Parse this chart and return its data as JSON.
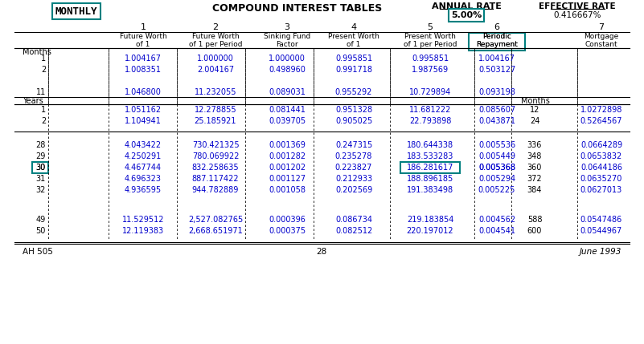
{
  "title_left": "MONTHLY",
  "title_center": "COMPOUND INTEREST TABLES",
  "title_rate_label": "ANNUAL RATE",
  "title_rate_value": "5.00%",
  "title_eff_label": "EFFECTIVE RATE",
  "title_eff_value": "0.416667%",
  "col_numbers": [
    "1",
    "2",
    "3",
    "4",
    "5",
    "6",
    "",
    "7"
  ],
  "col_headers": [
    [
      "Future Worth",
      "of 1"
    ],
    [
      "Future Worth",
      "of 1 per Period"
    ],
    [
      "Sinking Fund",
      "Factor"
    ],
    [
      "Present Worth",
      "of 1"
    ],
    [
      "Present Worth",
      "of 1 per Period"
    ],
    [
      "Periodic",
      "Repayment"
    ],
    [],
    [
      "Mortgage",
      "Constant"
    ]
  ],
  "row_label_left": "Months",
  "months_rows": [
    [
      "1",
      "1.004167",
      "1.000000",
      "1.000000",
      "0.995851",
      "0.995851",
      "1.004167",
      "",
      ""
    ],
    [
      "2",
      "1.008351",
      "2.004167",
      "0.498960",
      "0.991718",
      "1.987569",
      "0.503127",
      "",
      ""
    ],
    [
      "11",
      "1.046800",
      "11.232055",
      "0.089031",
      "0.955292",
      "10.729894",
      "0.093198",
      "",
      ""
    ]
  ],
  "years_label": "Years",
  "months_right_label": "Months",
  "years_rows": [
    [
      "1",
      "1.051162",
      "12.278855",
      "0.081441",
      "0.951328",
      "11.681222",
      "0.085607",
      "12",
      "1.0272898"
    ],
    [
      "2",
      "1.104941",
      "25.185921",
      "0.039705",
      "0.905025",
      "22.793898",
      "0.043871",
      "24",
      "0.5264567"
    ],
    [
      "28",
      "4.043422",
      "730.421325",
      "0.001369",
      "0.247315",
      "180.644338",
      "0.005536",
      "336",
      "0.0664289"
    ],
    [
      "29",
      "4.250291",
      "780.069922",
      "0.001282",
      "0.235278",
      "183.533283",
      "0.005449",
      "348",
      "0.0653832"
    ],
    [
      "30",
      "4.467744",
      "832.258635",
      "0.001202",
      "0.223827",
      "186.281617",
      "0.005368",
      "360",
      "0.0644186"
    ],
    [
      "31",
      "4.696323",
      "887.117422",
      "0.001127",
      "0.212933",
      "188.896185",
      "0.005294",
      "372",
      "0.0635270"
    ],
    [
      "32",
      "4.936595",
      "944.782889",
      "0.001058",
      "0.202569",
      "191.383498",
      "0.005225",
      "384",
      "0.0627013"
    ],
    [
      "49",
      "11.529512",
      "2,527.082765",
      "0.000396",
      "0.086734",
      "219.183854",
      "0.004562",
      "588",
      "0.0547486"
    ],
    [
      "50",
      "12.119383",
      "2,668.651971",
      "0.000375",
      "0.082512",
      "220.197012",
      "0.004541",
      "600",
      "0.0544967"
    ]
  ],
  "footer_left": "AH 505",
  "footer_center": "28",
  "footer_right": "June 1993",
  "teal_color": "#008080",
  "blue_text_color": "#0000CC",
  "highlight_box_color": "#008080",
  "bg_color": "#FFFFFF"
}
